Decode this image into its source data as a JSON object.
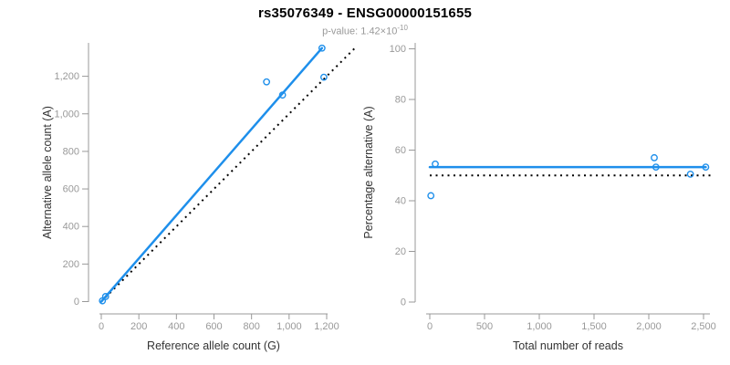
{
  "header": {
    "title": "rs35076349 - ENSG00000151655",
    "pvalue": {
      "label": "p-value: 1.42×10",
      "exponent": "-10"
    }
  },
  "colors": {
    "accent": "#1E8FEB",
    "reference_line": "#000000",
    "axis": "#999999",
    "tick_label": "#999999",
    "axis_title": "#333333"
  },
  "chart_data": [
    {
      "type": "scatter",
      "name": "allele-counts-scatter",
      "xlabel": "Reference allele count (G)",
      "ylabel": "Alternative allele count (A)",
      "xlim": [
        0,
        1360
      ],
      "ylim": [
        0,
        1380
      ],
      "xticks": [
        0,
        200,
        400,
        600,
        800,
        1000,
        1200
      ],
      "xtick_labels": [
        "0",
        "200",
        "400",
        "600",
        "800",
        "1,000",
        "1,200"
      ],
      "yticks": [
        0,
        200,
        400,
        600,
        800,
        1000,
        1200
      ],
      "ytick_labels": [
        "0",
        "200",
        "400",
        "600",
        "800",
        "1,000",
        "1,200"
      ],
      "grid": false,
      "points": [
        {
          "x": 6,
          "y": 4
        },
        {
          "x": 23,
          "y": 27
        },
        {
          "x": 880,
          "y": 1170
        },
        {
          "x": 965,
          "y": 1100
        },
        {
          "x": 1185,
          "y": 1195
        },
        {
          "x": 1175,
          "y": 1350
        }
      ],
      "fit_line": {
        "x1": 0,
        "y1": 0,
        "x2": 1175,
        "y2": 1350,
        "style": "solid"
      },
      "reference_line": {
        "x1": 0,
        "y1": 0,
        "x2": 1350,
        "y2": 1350,
        "style": "dotted",
        "meaning": "identity y=x"
      }
    },
    {
      "type": "scatter",
      "name": "percentage-alternative-scatter",
      "xlabel": "Total number of reads",
      "ylabel": "Percentage alternative (A)",
      "xlim": [
        0,
        2585
      ],
      "ylim": [
        0,
        103
      ],
      "xticks": [
        0,
        500,
        1000,
        1500,
        2000,
        2500
      ],
      "xtick_labels": [
        "0",
        "500",
        "1,000",
        "1,500",
        "2,000",
        "2,500"
      ],
      "yticks": [
        0,
        20,
        40,
        60,
        80,
        100
      ],
      "ytick_labels": [
        "0",
        "20",
        "40",
        "60",
        "80",
        "100"
      ],
      "grid": false,
      "points": [
        {
          "x": 10,
          "y": 42
        },
        {
          "x": 50,
          "y": 54.5
        },
        {
          "x": 2050,
          "y": 57
        },
        {
          "x": 2065,
          "y": 53.3
        },
        {
          "x": 2380,
          "y": 50.5
        },
        {
          "x": 2520,
          "y": 53.3
        }
      ],
      "fit_line": {
        "x1": 0,
        "y1": 53.3,
        "x2": 2520,
        "y2": 53.3,
        "style": "solid"
      },
      "reference_line": {
        "x1": 0,
        "y1": 50,
        "x2": 2585,
        "y2": 50,
        "style": "dotted",
        "meaning": "50% reference"
      }
    }
  ]
}
